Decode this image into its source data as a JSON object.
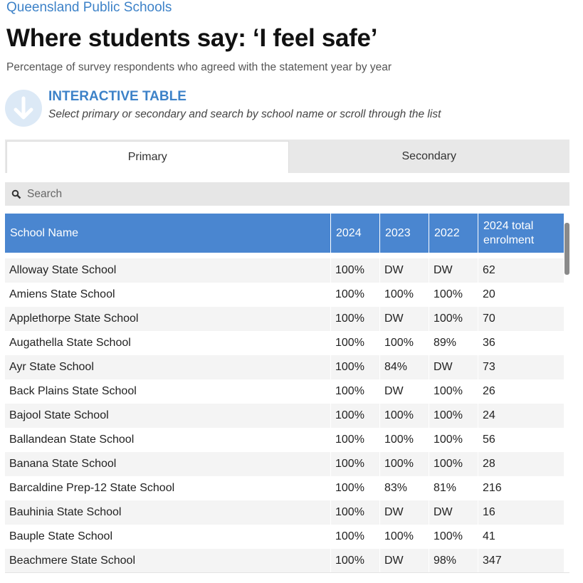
{
  "header": {
    "kicker": "Queensland Public Schools",
    "title": "Where students say: ‘I feel safe’",
    "subtitle": "Percentage of survey respondents who agreed with the statement year by year"
  },
  "instruction": {
    "title": "INTERACTIVE TABLE",
    "text": "Select primary or secondary and search by school name or scroll through the list"
  },
  "tabs": [
    "Primary",
    "Secondary"
  ],
  "search": {
    "placeholder": "Search"
  },
  "table": {
    "columns": [
      "School Name",
      "2024",
      "2023",
      "2022",
      "2024 total enrolment"
    ],
    "rows": [
      [
        "Alloway State School",
        "100%",
        "DW",
        "DW",
        "62"
      ],
      [
        "Amiens State School",
        "100%",
        "100%",
        "100%",
        "20"
      ],
      [
        "Applethorpe State School",
        "100%",
        "DW",
        "100%",
        "70"
      ],
      [
        "Augathella State School",
        "100%",
        "100%",
        "89%",
        "36"
      ],
      [
        "Ayr State School",
        "100%",
        "84%",
        "DW",
        "73"
      ],
      [
        "Back Plains State School",
        "100%",
        "DW",
        "100%",
        "26"
      ],
      [
        "Bajool State School",
        "100%",
        "100%",
        "100%",
        "24"
      ],
      [
        "Ballandean State School",
        "100%",
        "100%",
        "100%",
        "56"
      ],
      [
        "Banana State School",
        "100%",
        "100%",
        "100%",
        "28"
      ],
      [
        "Barcaldine Prep-12 State School",
        "100%",
        "83%",
        "81%",
        "216"
      ],
      [
        "Bauhinia State School",
        "100%",
        "DW",
        "DW",
        "16"
      ],
      [
        "Bauple State School",
        "100%",
        "100%",
        "100%",
        "41"
      ],
      [
        "Beachmere State School",
        "100%",
        "DW",
        "98%",
        "347"
      ]
    ]
  }
}
